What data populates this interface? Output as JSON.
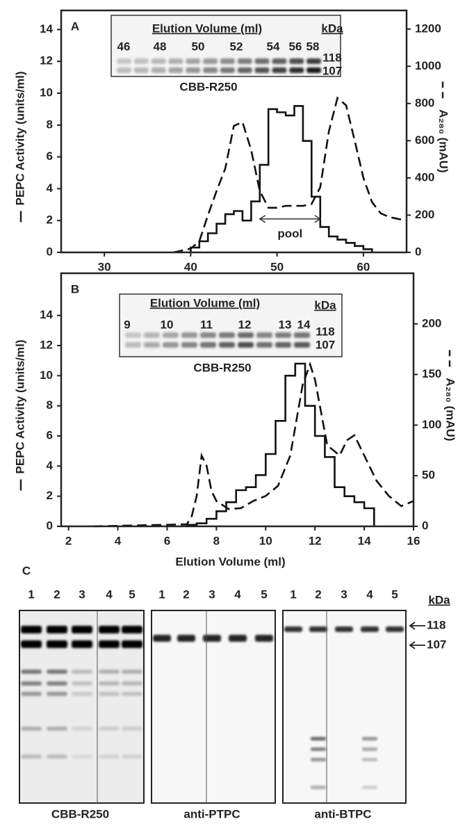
{
  "chart_data": [
    {
      "type": "line",
      "panel": "A",
      "ylabel": "PEPC Activity (units/ml)",
      "y2label": "A₂₈₀ (mAU)",
      "xlim": [
        25,
        65
      ],
      "xticks": [
        30,
        40,
        50,
        60
      ],
      "ylim": [
        0,
        15.2
      ],
      "yticks": [
        0,
        2,
        4,
        6,
        8,
        10,
        12,
        14
      ],
      "y2lim": [
        0,
        1300
      ],
      "y2ticks": [
        0,
        200,
        400,
        600,
        800,
        1000,
        1200
      ],
      "series": [
        {
          "color": "#111",
          "dash": false,
          "x": [
            40,
            40,
            41,
            41,
            42,
            42,
            43,
            43,
            44,
            44,
            45,
            45,
            46,
            46,
            47,
            47,
            48,
            48,
            49,
            49,
            50,
            50,
            51,
            51,
            52,
            52,
            53,
            53,
            54,
            54,
            55,
            55,
            56,
            56,
            57,
            57,
            58,
            58,
            59,
            59,
            60,
            60,
            61,
            61
          ],
          "values": [
            0,
            0.3,
            0.3,
            0.7,
            0.7,
            1.2,
            1.2,
            1.8,
            1.8,
            2.4,
            2.4,
            2.6,
            2.6,
            2.0,
            2.0,
            3.2,
            3.2,
            5.5,
            5.5,
            9.0,
            9.0,
            8.8,
            8.8,
            8.6,
            8.6,
            9.2,
            9.2,
            7.0,
            7.0,
            3.5,
            3.5,
            1.6,
            1.6,
            1.0,
            1.0,
            0.8,
            0.8,
            0.6,
            0.6,
            0.4,
            0.4,
            0.2,
            0.2,
            0
          ]
        },
        {
          "color": "#111",
          "dash": true,
          "axis": "y2",
          "x": [
            38,
            40,
            41,
            42,
            43,
            44,
            45,
            46,
            47,
            48,
            49,
            50,
            51,
            52,
            53,
            54,
            55,
            56,
            57,
            58,
            59,
            60,
            61,
            62,
            63,
            64,
            65
          ],
          "values": [
            0,
            20,
            60,
            200,
            330,
            450,
            680,
            700,
            550,
            330,
            240,
            240,
            250,
            250,
            250,
            260,
            350,
            650,
            830,
            790,
            600,
            400,
            270,
            210,
            190,
            180,
            170
          ]
        }
      ],
      "annotations": [
        {
          "text": "pool",
          "x1": 48,
          "x2": 55,
          "y": 2.1
        }
      ],
      "inset": {
        "title": "Elution Volume (ml)",
        "lanes": [
          "46",
          "48",
          "50",
          "52",
          "54",
          "56",
          "58"
        ],
        "unit": "kDa",
        "markers": [
          "118",
          "107"
        ],
        "stain": "CBB-R250"
      }
    },
    {
      "type": "line",
      "panel": "B",
      "xlabel": "Elution Volume (ml)",
      "ylabel": "PEPC Activity (units/ml)",
      "y2label": "A₂₈₀ (mAU)",
      "xlim": [
        1.7,
        16
      ],
      "xticks": [
        2,
        4,
        6,
        8,
        10,
        12,
        14,
        16
      ],
      "ylim": [
        0,
        16.8
      ],
      "yticks": [
        0,
        2,
        4,
        6,
        8,
        10,
        12,
        14
      ],
      "y2lim": [
        0,
        250
      ],
      "y2ticks": [
        0,
        50,
        100,
        150,
        200
      ],
      "series": [
        {
          "color": "#111",
          "dash": false,
          "x": [
            6.8,
            6.8,
            7.2,
            7.2,
            7.6,
            7.6,
            8.0,
            8.0,
            8.4,
            8.4,
            8.8,
            8.8,
            9.2,
            9.2,
            9.6,
            9.6,
            10.0,
            10.0,
            10.4,
            10.4,
            10.8,
            10.8,
            11.2,
            11.2,
            11.6,
            11.6,
            12.0,
            12.0,
            12.4,
            12.4,
            12.8,
            12.8,
            13.2,
            13.2,
            13.6,
            13.6,
            14.0,
            14.0,
            14.4,
            14.4
          ],
          "values": [
            0,
            0.1,
            0.1,
            0.2,
            0.2,
            0.5,
            0.5,
            1.0,
            1.0,
            1.6,
            1.6,
            2.4,
            2.4,
            2.6,
            2.6,
            3.4,
            3.4,
            4.8,
            4.8,
            7.0,
            7.0,
            10.0,
            10.0,
            10.8,
            10.8,
            8.0,
            8.0,
            6.0,
            6.0,
            4.6,
            4.6,
            2.6,
            2.6,
            2.0,
            2.0,
            1.6,
            1.6,
            1.2,
            1.2,
            0
          ]
        },
        {
          "color": "#111",
          "dash": true,
          "axis": "y2",
          "x": [
            3,
            6.8,
            7.0,
            7.2,
            7.4,
            7.6,
            7.8,
            8.0,
            8.5,
            9.0,
            9.5,
            10.0,
            10.5,
            11.0,
            11.5,
            11.8,
            12.0,
            12.5,
            13.0,
            13.3,
            13.6,
            14.0,
            14.5,
            15.0,
            15.5,
            16
          ],
          "values": [
            0,
            2,
            10,
            30,
            70,
            60,
            35,
            25,
            17,
            18,
            25,
            30,
            40,
            70,
            140,
            160,
            145,
            80,
            70,
            85,
            90,
            70,
            45,
            30,
            20,
            25
          ]
        }
      ],
      "inset": {
        "title": "Elution Volume (ml)",
        "lanes": [
          "9",
          "10",
          "11",
          "12",
          "13",
          "14"
        ],
        "unit": "kDa",
        "markers": [
          "118",
          "107"
        ],
        "stain": "CBB-R250"
      }
    }
  ],
  "panel_c": {
    "label": "C",
    "unit": "kDa",
    "markers": [
      "118",
      "107"
    ],
    "gels": [
      {
        "lanes": [
          "1",
          "2",
          "3",
          "4",
          "5"
        ],
        "stain": "CBB-R250"
      },
      {
        "lanes": [
          "1",
          "2",
          "3",
          "4",
          "5"
        ],
        "stain": "anti-PTPC"
      },
      {
        "lanes": [
          "1",
          "2",
          "3",
          "4",
          "5"
        ],
        "stain": "anti-BTPC"
      }
    ]
  }
}
